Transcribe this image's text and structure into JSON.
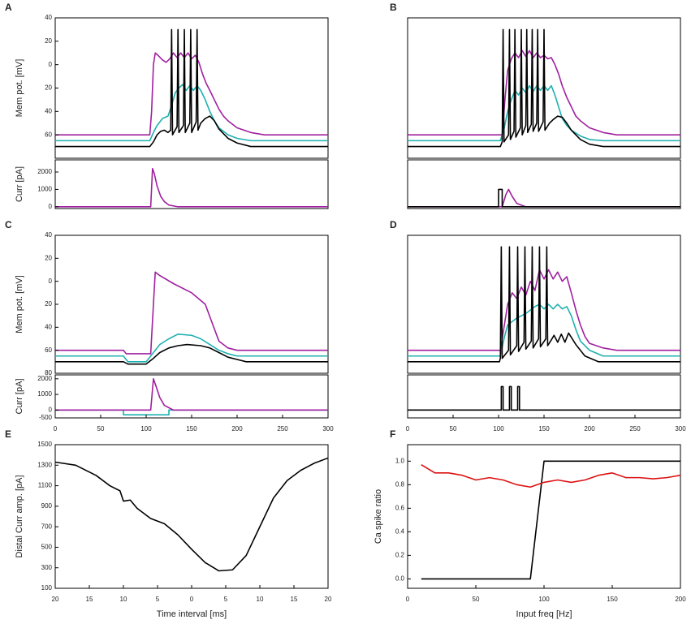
{
  "chart_data": [
    {
      "type": "line",
      "panel": "A",
      "ylabel": "Mem pot. [mV]",
      "xlim": [
        0,
        300
      ],
      "ylim": [
        -80,
        40
      ],
      "yticks": [
        40,
        20,
        0,
        {
          "value": -20,
          "label": "20"
        },
        {
          "value": -40,
          "label": "40"
        },
        {
          "value": -60,
          "label": "60"
        }
      ],
      "series": [
        {
          "color": "#a020a0",
          "x": [
            0,
            104,
            106,
            108,
            110,
            113,
            118,
            122,
            126,
            130,
            134,
            138,
            142,
            146,
            150,
            154,
            158,
            162,
            166,
            170,
            175,
            180,
            185,
            190,
            200,
            215,
            230,
            300
          ],
          "values": [
            -60,
            -60,
            -40,
            0,
            10,
            8,
            4,
            2,
            5,
            10,
            6,
            10,
            6,
            10,
            5,
            8,
            2,
            -8,
            -16,
            -22,
            -30,
            -38,
            -44,
            -48,
            -54,
            -58,
            -60,
            -60
          ]
        },
        {
          "color": "#20b0b0",
          "x": [
            0,
            104,
            108,
            112,
            118,
            124,
            128,
            132,
            136,
            140,
            144,
            148,
            152,
            156,
            160,
            165,
            170,
            175,
            180,
            190,
            200,
            215,
            300
          ],
          "values": [
            -65,
            -65,
            -58,
            -52,
            -46,
            -44,
            -35,
            -24,
            -20,
            -17,
            -22,
            -18,
            -22,
            -18,
            -22,
            -30,
            -40,
            -48,
            -54,
            -60,
            -63,
            -65,
            -65
          ]
        },
        {
          "color": "#000000",
          "x": [
            0,
            104,
            108,
            112,
            116,
            120,
            124,
            127,
            128,
            129,
            134,
            135,
            136,
            141,
            142,
            143,
            148,
            149,
            150,
            155,
            156,
            157,
            160,
            165,
            170,
            175,
            180,
            190,
            200,
            215,
            300
          ],
          "values": [
            -70,
            -70,
            -66,
            -60,
            -57,
            -56,
            -58,
            -56,
            30,
            -60,
            -53,
            30,
            -58,
            -52,
            30,
            -58,
            -50,
            30,
            -58,
            -49,
            30,
            -56,
            -50,
            -46,
            -44,
            -48,
            -55,
            -63,
            -67,
            -70,
            -70
          ]
        }
      ]
    },
    {
      "type": "line",
      "ylabel": "Curr [pA]",
      "xlim": [
        0,
        300
      ],
      "ylim": [
        -100,
        2700
      ],
      "yticks": [
        0,
        1000,
        2000
      ],
      "series": [
        {
          "color": "#a020a0",
          "x": [
            0,
            105,
            107,
            109,
            112,
            116,
            120,
            125,
            135,
            300
          ],
          "values": [
            0,
            0,
            2200,
            1900,
            1200,
            600,
            300,
            100,
            0,
            0
          ]
        }
      ]
    },
    {
      "type": "line",
      "panel": "B",
      "xlim": [
        0,
        300
      ],
      "ylim": [
        -80,
        40
      ],
      "series": [
        {
          "color": "#a020a0",
          "x": [
            0,
            104,
            107,
            110,
            114,
            118,
            122,
            126,
            130,
            134,
            138,
            142,
            146,
            150,
            154,
            158,
            162,
            166,
            170,
            175,
            180,
            185,
            190,
            200,
            215,
            230,
            300
          ],
          "values": [
            -60,
            -60,
            -30,
            -5,
            5,
            10,
            6,
            12,
            7,
            12,
            6,
            10,
            6,
            8,
            5,
            6,
            0,
            -8,
            -18,
            -28,
            -36,
            -44,
            -48,
            -54,
            -58,
            -60,
            -60
          ]
        },
        {
          "color": "#20b0b0",
          "x": [
            0,
            102,
            106,
            110,
            114,
            118,
            122,
            126,
            130,
            134,
            138,
            142,
            146,
            150,
            154,
            158,
            162,
            166,
            170,
            175,
            180,
            190,
            200,
            215,
            300
          ],
          "values": [
            -65,
            -65,
            -55,
            -40,
            -30,
            -22,
            -26,
            -20,
            -24,
            -18,
            -23,
            -18,
            -22,
            -18,
            -22,
            -18,
            -26,
            -36,
            -46,
            -52,
            -56,
            -61,
            -64,
            -65,
            -65
          ]
        },
        {
          "color": "#000000",
          "x": [
            0,
            102,
            104,
            105,
            106,
            111,
            112,
            113,
            117,
            118,
            119,
            124,
            125,
            126,
            130,
            131,
            132,
            136,
            137,
            138,
            142,
            143,
            144,
            149,
            150,
            151,
            156,
            160,
            165,
            170,
            175,
            180,
            190,
            200,
            215,
            300
          ],
          "values": [
            -70,
            -70,
            -66,
            30,
            -66,
            -60,
            30,
            -64,
            -57,
            30,
            -62,
            -54,
            30,
            -60,
            -52,
            30,
            -58,
            -51,
            30,
            -57,
            -50,
            30,
            -57,
            -49,
            30,
            -56,
            -50,
            -47,
            -44,
            -45,
            -50,
            -56,
            -64,
            -68,
            -70,
            -70
          ]
        }
      ]
    },
    {
      "type": "line",
      "xlim": [
        0,
        300
      ],
      "ylim": [
        -100,
        2700
      ],
      "series": [
        {
          "color": "#a020a0",
          "x": [
            0,
            104,
            108,
            111,
            115,
            120,
            130,
            300
          ],
          "values": [
            0,
            0,
            700,
            1000,
            600,
            200,
            0,
            0
          ]
        },
        {
          "color": "#000000",
          "x": [
            0,
            100,
            100,
            104,
            104,
            300
          ],
          "values": [
            0,
            0,
            1000,
            1000,
            0,
            0
          ]
        }
      ]
    },
    {
      "type": "line",
      "panel": "C",
      "ylabel": "Mem pot. [mV]",
      "xlim": [
        0,
        300
      ],
      "ylim": [
        -80,
        40
      ],
      "yticks": [
        40,
        20,
        0,
        {
          "value": -20,
          "label": "20"
        },
        {
          "value": -40,
          "label": "40"
        },
        {
          "value": -60,
          "label": "60"
        },
        {
          "value": -80,
          "label": "80"
        }
      ],
      "series": [
        {
          "color": "#a020a0",
          "x": [
            0,
            75,
            78,
            105,
            108,
            110,
            115,
            130,
            150,
            165,
            172,
            180,
            190,
            200,
            300
          ],
          "values": [
            -60,
            -60,
            -63,
            -63,
            -20,
            8,
            5,
            -2,
            -10,
            -20,
            -35,
            -52,
            -58,
            -60,
            -60
          ]
        },
        {
          "color": "#20b0b0",
          "x": [
            0,
            75,
            80,
            100,
            108,
            115,
            125,
            135,
            150,
            160,
            170,
            180,
            190,
            200,
            300
          ],
          "values": [
            -65,
            -65,
            -70,
            -70,
            -62,
            -55,
            -50,
            -46,
            -47,
            -50,
            -55,
            -60,
            -63,
            -65,
            -65
          ]
        },
        {
          "color": "#000000",
          "x": [
            0,
            75,
            80,
            100,
            108,
            115,
            125,
            135,
            145,
            160,
            170,
            180,
            190,
            200,
            210,
            300
          ],
          "values": [
            -70,
            -70,
            -72,
            -72,
            -67,
            -62,
            -58,
            -56,
            -55,
            -56,
            -58,
            -62,
            -66,
            -68,
            -70,
            -70
          ]
        }
      ]
    },
    {
      "type": "line",
      "ylabel": "Curr [pA]",
      "xlim": [
        0,
        300
      ],
      "ylim": [
        -500,
        2250
      ],
      "yticks": [
        2000,
        1000,
        0,
        -500
      ],
      "xticks": [
        0,
        50,
        100,
        150,
        200,
        250,
        300
      ],
      "series": [
        {
          "color": "#20b0b0",
          "x": [
            0,
            75,
            75,
            125,
            125,
            300
          ],
          "values": [
            0,
            0,
            -300,
            -300,
            0,
            0
          ]
        },
        {
          "color": "#a020a0",
          "x": [
            0,
            105,
            108,
            111,
            115,
            120,
            130,
            300
          ],
          "values": [
            0,
            0,
            2000,
            1500,
            800,
            300,
            0,
            0
          ]
        }
      ]
    },
    {
      "type": "line",
      "panel": "D",
      "xlim": [
        0,
        300
      ],
      "ylim": [
        -80,
        40
      ],
      "series": [
        {
          "color": "#a020a0",
          "x": [
            0,
            102,
            106,
            110,
            115,
            120,
            125,
            130,
            135,
            140,
            145,
            150,
            155,
            160,
            165,
            170,
            175,
            180,
            185,
            190,
            195,
            200,
            215,
            230,
            300
          ],
          "values": [
            -60,
            -60,
            -40,
            -20,
            -10,
            -15,
            -5,
            -12,
            0,
            -8,
            10,
            2,
            10,
            2,
            8,
            0,
            4,
            -10,
            -25,
            -38,
            -48,
            -54,
            -58,
            -60,
            -60
          ]
        },
        {
          "color": "#20b0b0",
          "x": [
            0,
            102,
            106,
            110,
            115,
            120,
            125,
            130,
            135,
            140,
            145,
            150,
            155,
            160,
            165,
            170,
            175,
            180,
            185,
            190,
            200,
            215,
            300
          ],
          "values": [
            -65,
            -65,
            -50,
            -38,
            -35,
            -32,
            -30,
            -28,
            -25,
            -22,
            -20,
            -24,
            -20,
            -24,
            -20,
            -24,
            -22,
            -30,
            -42,
            -52,
            -60,
            -65,
            -65
          ]
        },
        {
          "color": "#000000",
          "x": [
            0,
            101,
            102,
            103,
            104,
            111,
            112,
            113,
            120,
            121,
            122,
            128,
            129,
            130,
            136,
            137,
            138,
            144,
            145,
            146,
            152,
            153,
            154,
            158,
            161,
            165,
            169,
            173,
            177,
            185,
            195,
            210,
            300
          ],
          "values": [
            -70,
            -70,
            -67,
            30,
            -67,
            -60,
            30,
            -64,
            -56,
            30,
            -61,
            -53,
            30,
            -59,
            -52,
            30,
            -58,
            -50,
            30,
            -57,
            -50,
            30,
            -56,
            -51,
            -47,
            -53,
            -46,
            -53,
            -45,
            -55,
            -65,
            -70,
            -70
          ]
        }
      ]
    },
    {
      "type": "line",
      "xlim": [
        0,
        300
      ],
      "ylim": [
        -500,
        2250
      ],
      "xticks": [
        0,
        50,
        100,
        150,
        200,
        250,
        300
      ],
      "series": [
        {
          "color": "#000000",
          "x": [
            0,
            103,
            103,
            105,
            105,
            112,
            112,
            114,
            114,
            121,
            121,
            123,
            123,
            300
          ],
          "values": [
            0,
            0,
            1500,
            1500,
            0,
            0,
            1500,
            1500,
            0,
            0,
            1500,
            1500,
            0,
            0
          ]
        }
      ]
    },
    {
      "type": "line",
      "panel": "E",
      "ylabel": "Distal Curr amp. [pA]",
      "xlabel": "Time interval [ms]",
      "xlim": [
        -20,
        20
      ],
      "ylim": [
        100,
        1500
      ],
      "yticks": [
        1500,
        1300,
        1100,
        900,
        700,
        500,
        300,
        100
      ],
      "xticks": [
        {
          "value": -20,
          "label": "20"
        },
        {
          "value": -15,
          "label": "15"
        },
        {
          "value": -10,
          "label": "10"
        },
        {
          "value": -5,
          "label": "5"
        },
        0,
        5,
        10,
        15,
        20
      ],
      "series": [
        {
          "color": "#000000",
          "x": [
            -20,
            -17,
            -14,
            -12,
            -10.5,
            -10,
            -9,
            -8,
            -6,
            -4,
            -2,
            0,
            2,
            4,
            6,
            8,
            10,
            12,
            14,
            16,
            18,
            20
          ],
          "values": [
            1330,
            1300,
            1200,
            1100,
            1050,
            950,
            960,
            880,
            780,
            730,
            620,
            480,
            350,
            270,
            280,
            420,
            700,
            980,
            1150,
            1250,
            1320,
            1370
          ]
        }
      ]
    },
    {
      "type": "line",
      "panel": "F",
      "ylabel": "Ca spike ratio",
      "xlabel": "Input freq [Hz]",
      "xlim": [
        0,
        200
      ],
      "ylim": [
        -0.08,
        1.14
      ],
      "yticks": [
        {
          "value": 1,
          "label": "1.0"
        },
        0.8,
        0.6,
        0.4,
        0.2,
        {
          "value": 0,
          "label": "0.0"
        }
      ],
      "xticks": [
        0,
        50,
        100,
        150,
        200
      ],
      "series": [
        {
          "color": "#000000",
          "x": [
            10,
            90,
            100,
            200
          ],
          "values": [
            0,
            0,
            1,
            1
          ]
        },
        {
          "color": "#dd1111",
          "x": [
            10,
            20,
            30,
            40,
            50,
            60,
            70,
            80,
            90,
            100,
            110,
            120,
            130,
            140,
            150,
            160,
            170,
            180,
            190,
            200
          ],
          "values": [
            0.97,
            0.9,
            0.9,
            0.88,
            0.84,
            0.86,
            0.84,
            0.8,
            0.78,
            0.82,
            0.84,
            0.82,
            0.84,
            0.88,
            0.9,
            0.86,
            0.86,
            0.85,
            0.86,
            0.88
          ]
        }
      ]
    }
  ]
}
